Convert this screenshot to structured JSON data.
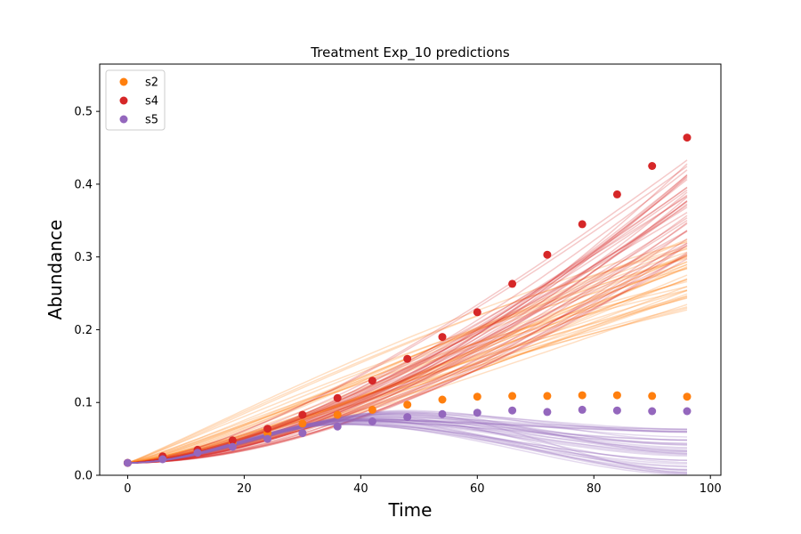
{
  "chart_data": {
    "type": "scatter",
    "title": "Treatment Exp_10 predictions",
    "xlabel": "Time",
    "ylabel": "Abundance",
    "xlim": [
      -4.8,
      101.8
    ],
    "ylim": [
      0,
      0.565
    ],
    "xticks": [
      0,
      20,
      40,
      60,
      80,
      100
    ],
    "yticks": [
      0.0,
      0.1,
      0.2,
      0.3,
      0.4,
      0.5
    ],
    "xtick_labels": [
      "0",
      "20",
      "40",
      "60",
      "80",
      "100"
    ],
    "ytick_labels": [
      "0.0",
      "0.1",
      "0.2",
      "0.3",
      "0.4",
      "0.5"
    ],
    "grid": false,
    "legend_position": "top-left",
    "x": [
      0,
      6,
      12,
      18,
      24,
      30,
      36,
      42,
      48,
      54,
      60,
      66,
      72,
      78,
      84,
      90,
      96
    ],
    "series": [
      {
        "name": "s2",
        "color": "#ff7f0e",
        "values": [
          0.017,
          0.025,
          0.034,
          0.045,
          0.058,
          0.071,
          0.083,
          0.09,
          0.097,
          0.104,
          0.108,
          0.109,
          0.109,
          0.11,
          0.11,
          0.109,
          0.108
        ]
      },
      {
        "name": "s4",
        "color": "#d62728",
        "values": [
          0.017,
          0.026,
          0.035,
          0.048,
          0.064,
          0.083,
          0.106,
          0.13,
          0.16,
          0.19,
          0.224,
          0.263,
          0.303,
          0.345,
          0.386,
          0.425,
          0.464
        ]
      },
      {
        "name": "s5",
        "color": "#9467bd",
        "values": [
          0.017,
          0.022,
          0.031,
          0.039,
          0.05,
          0.058,
          0.067,
          0.074,
          0.08,
          0.084,
          0.086,
          0.089,
          0.087,
          0.09,
          0.089,
          0.088,
          0.088
        ]
      }
    ],
    "prediction_curves": [
      {
        "series": "s2",
        "color": "#ff7f0e",
        "count": 40,
        "x_end": 97,
        "end_range": [
          0.225,
          0.33
        ],
        "opacity": 0.25
      },
      {
        "series": "s4",
        "color": "#d62728",
        "count": 40,
        "x_end": 97,
        "end_range": [
          0.3,
          0.44
        ],
        "opacity": 0.25
      },
      {
        "series": "s5",
        "color": "#9467bd",
        "count": 40,
        "x_end": 97,
        "end_range": [
          0.0,
          0.065
        ],
        "opacity": 0.25
      }
    ]
  }
}
